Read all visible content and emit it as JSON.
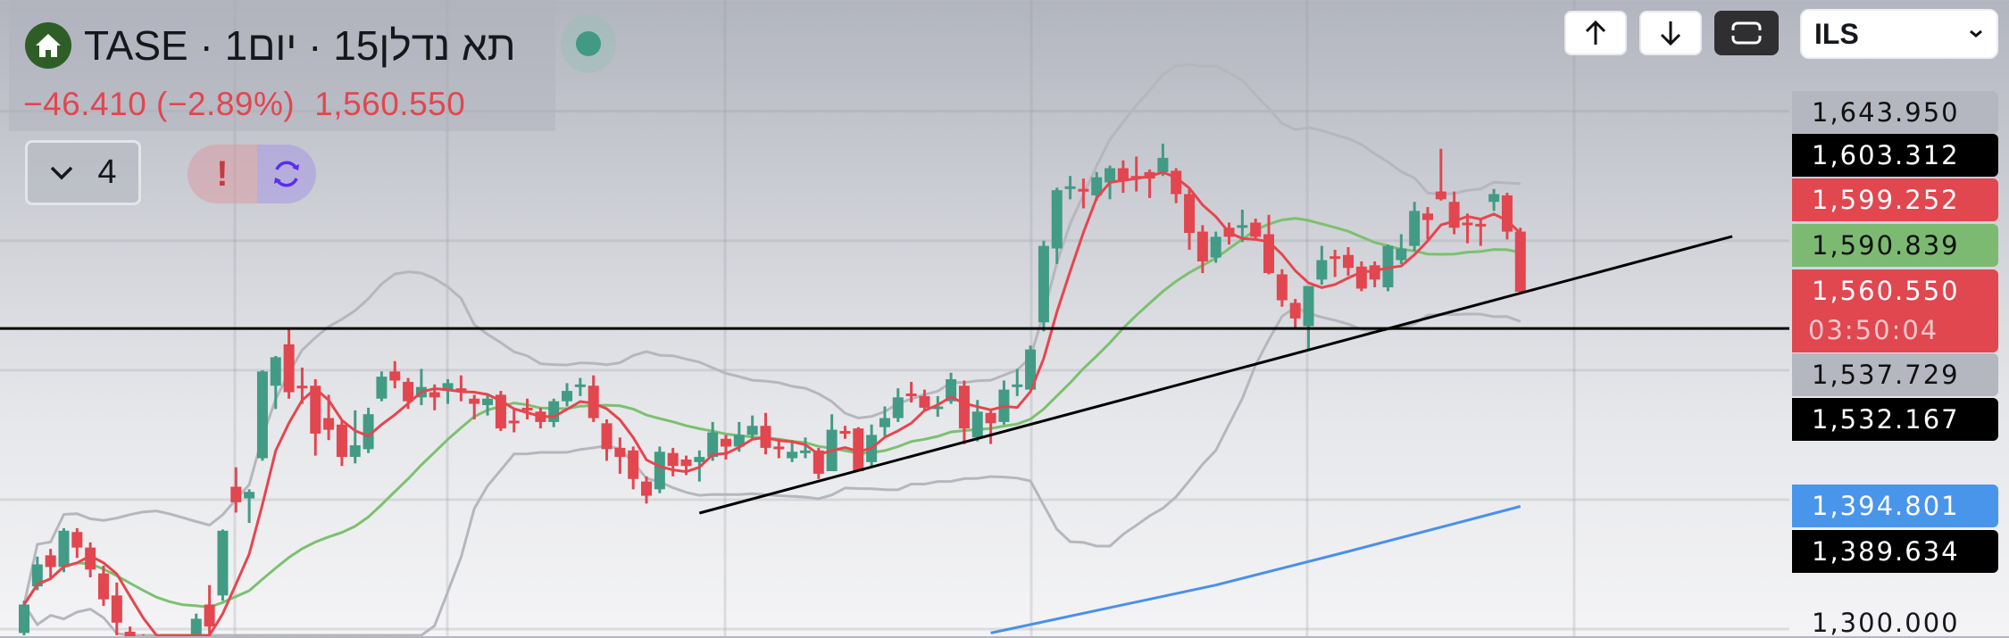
{
  "header": {
    "title": "תא נדלן15 · יום1 · TASE",
    "change": "−46.410 (−2.89%)",
    "last_price": "1,560.550",
    "indicators_count": "4",
    "home_icon": "home-icon",
    "status": "live-dot"
  },
  "toolbar": {
    "up_icon": "arrow-up-icon",
    "down_icon": "arrow-down-icon",
    "fullscreen_icon": "fullscreen-icon",
    "currency": "ILS"
  },
  "price_labels": {
    "bb_upper": "1,643.950",
    "trendline_end": "1,603.312",
    "ma_fast": "1,599.252",
    "ma_slow": "1,590.839",
    "last": "1,560.550",
    "countdown": "03:50:04",
    "bb_lower": "1,537.729",
    "hline": "1,532.167",
    "ma_long": "1,394.801",
    "trendline_start": "1,389.634"
  },
  "colors": {
    "up": "#429b85",
    "down": "#e2464f",
    "ma_fast": "#e5464e",
    "ma_slow": "#7cc070",
    "bands": "#b6b7bd",
    "ma_long": "#4a90e8",
    "drawings": "#000000"
  },
  "chart_data": {
    "type": "candlestick",
    "yaxis": {
      "ticks": [
        1300,
        1400,
        1500,
        1600,
        1700
      ],
      "visible_tick_labels": [
        "1,300.000"
      ]
    },
    "hline": 1532.167,
    "trendline": {
      "from": [
        51,
        1389.634
      ],
      "to": [
        129,
        1603.312
      ]
    },
    "ma_long_points": [
      [
        73,
        1297
      ],
      [
        90,
        1334
      ],
      [
        100,
        1360
      ],
      [
        113,
        1394.801
      ]
    ],
    "ohlc": [
      [
        1297,
        1322,
        1290,
        1319
      ],
      [
        1333,
        1356,
        1330,
        1350
      ],
      [
        1357,
        1362,
        1340,
        1348
      ],
      [
        1348,
        1378,
        1344,
        1376
      ],
      [
        1375,
        1378,
        1355,
        1363
      ],
      [
        1363,
        1367,
        1340,
        1346
      ],
      [
        1343,
        1349,
        1318,
        1323
      ],
      [
        1326,
        1336,
        1295,
        1305
      ],
      [
        1298,
        1302,
        1284,
        1290
      ],
      [
        1293,
        1296,
        1272,
        1279
      ],
      [
        1279,
        1283,
        1265,
        1272
      ],
      [
        1272,
        1288,
        1268,
        1283
      ],
      [
        1283,
        1294,
        1278,
        1290
      ],
      [
        1286,
        1312,
        1280,
        1308
      ],
      [
        1319,
        1334,
        1296,
        1302
      ],
      [
        1326,
        1377,
        1322,
        1376
      ],
      [
        1410,
        1425,
        1390,
        1398
      ],
      [
        1401,
        1408,
        1382,
        1406
      ],
      [
        1432,
        1500,
        1430,
        1499
      ],
      [
        1488,
        1511,
        1470,
        1510
      ],
      [
        1520,
        1532,
        1478,
        1483
      ],
      [
        1488,
        1502,
        1474,
        1486
      ],
      [
        1488,
        1493,
        1434,
        1451
      ],
      [
        1463,
        1481,
        1446,
        1454
      ],
      [
        1458,
        1461,
        1426,
        1433
      ],
      [
        1433,
        1469,
        1428,
        1442
      ],
      [
        1439,
        1471,
        1436,
        1466
      ],
      [
        1478,
        1499,
        1476,
        1495
      ],
      [
        1499,
        1507,
        1486,
        1492
      ],
      [
        1491,
        1494,
        1470,
        1476
      ],
      [
        1479,
        1501,
        1473,
        1487
      ],
      [
        1483,
        1489,
        1469,
        1479
      ],
      [
        1484,
        1493,
        1474,
        1490
      ],
      [
        1486,
        1496,
        1476,
        1485
      ],
      [
        1478,
        1481,
        1462,
        1474
      ],
      [
        1473,
        1481,
        1465,
        1478
      ],
      [
        1481,
        1484,
        1453,
        1455
      ],
      [
        1461,
        1471,
        1452,
        1459
      ],
      [
        1471,
        1478,
        1462,
        1470
      ],
      [
        1468,
        1471,
        1455,
        1460
      ],
      [
        1460,
        1478,
        1456,
        1476
      ],
      [
        1476,
        1490,
        1472,
        1484
      ],
      [
        1488,
        1494,
        1480,
        1489
      ],
      [
        1488,
        1496,
        1460,
        1463
      ],
      [
        1459,
        1462,
        1430,
        1439
      ],
      [
        1440,
        1448,
        1420,
        1433
      ],
      [
        1438,
        1441,
        1408,
        1416
      ],
      [
        1414,
        1418,
        1397,
        1403
      ],
      [
        1408,
        1441,
        1405,
        1437
      ],
      [
        1436,
        1440,
        1418,
        1426
      ],
      [
        1431,
        1434,
        1419,
        1426
      ],
      [
        1429,
        1438,
        1414,
        1433
      ],
      [
        1433,
        1460,
        1430,
        1452
      ],
      [
        1447,
        1450,
        1431,
        1441
      ],
      [
        1441,
        1460,
        1437,
        1450
      ],
      [
        1450,
        1465,
        1446,
        1457
      ],
      [
        1457,
        1467,
        1435,
        1440
      ],
      [
        1441,
        1447,
        1432,
        1440
      ],
      [
        1432,
        1446,
        1429,
        1437
      ],
      [
        1437,
        1448,
        1432,
        1438
      ],
      [
        1438,
        1440,
        1416,
        1420
      ],
      [
        1422,
        1466,
        1422,
        1454
      ],
      [
        1453,
        1457,
        1447,
        1452
      ],
      [
        1455,
        1456,
        1422,
        1422
      ],
      [
        1429,
        1458,
        1426,
        1450
      ],
      [
        1456,
        1472,
        1449,
        1463
      ],
      [
        1463,
        1486,
        1460,
        1479
      ],
      [
        1482,
        1491,
        1475,
        1481
      ],
      [
        1480,
        1485,
        1469,
        1471
      ],
      [
        1471,
        1480,
        1464,
        1472
      ],
      [
        1476,
        1498,
        1474,
        1493
      ],
      [
        1488,
        1492,
        1443,
        1455
      ],
      [
        1448,
        1477,
        1445,
        1468
      ],
      [
        1467,
        1470,
        1443,
        1459
      ],
      [
        1460,
        1492,
        1458,
        1485
      ],
      [
        1488,
        1501,
        1480,
        1489
      ],
      [
        1485,
        1519,
        1485,
        1516
      ],
      [
        1537,
        1600,
        1530,
        1596
      ],
      [
        1594,
        1641,
        1582,
        1639
      ],
      [
        1640,
        1650,
        1632,
        1642
      ],
      [
        1640,
        1648,
        1625,
        1639
      ],
      [
        1635,
        1653,
        1631,
        1649
      ],
      [
        1645,
        1658,
        1632,
        1656
      ],
      [
        1656,
        1662,
        1637,
        1647
      ],
      [
        1650,
        1665,
        1638,
        1649
      ],
      [
        1653,
        1655,
        1633,
        1648
      ],
      [
        1653,
        1675,
        1650,
        1664
      ],
      [
        1654,
        1656,
        1629,
        1636
      ],
      [
        1636,
        1640,
        1593,
        1606
      ],
      [
        1607,
        1612,
        1575,
        1584
      ],
      [
        1587,
        1607,
        1583,
        1603
      ],
      [
        1610,
        1614,
        1597,
        1603
      ],
      [
        1611,
        1624,
        1599,
        1612
      ],
      [
        1614,
        1617,
        1600,
        1603
      ],
      [
        1605,
        1620,
        1574,
        1575
      ],
      [
        1574,
        1578,
        1549,
        1554
      ],
      [
        1552,
        1555,
        1533,
        1540
      ],
      [
        1534,
        1565,
        1516,
        1565
      ],
      [
        1570,
        1596,
        1566,
        1585
      ],
      [
        1588,
        1593,
        1572,
        1587
      ],
      [
        1589,
        1595,
        1573,
        1579
      ],
      [
        1580,
        1584,
        1561,
        1563
      ],
      [
        1581,
        1584,
        1564,
        1570
      ],
      [
        1564,
        1597,
        1561,
        1596
      ],
      [
        1585,
        1605,
        1582,
        1594
      ],
      [
        1596,
        1630,
        1592,
        1623
      ],
      [
        1621,
        1626,
        1601,
        1616
      ],
      [
        1638,
        1671,
        1631,
        1632
      ],
      [
        1630,
        1638,
        1605,
        1610
      ],
      [
        1614,
        1621,
        1598,
        1613
      ],
      [
        1613,
        1617,
        1596,
        1612
      ],
      [
        1630,
        1640,
        1623,
        1636
      ],
      [
        1635,
        1637,
        1601,
        1607
      ],
      [
        1607,
        1610,
        1559,
        1560.55
      ]
    ]
  }
}
